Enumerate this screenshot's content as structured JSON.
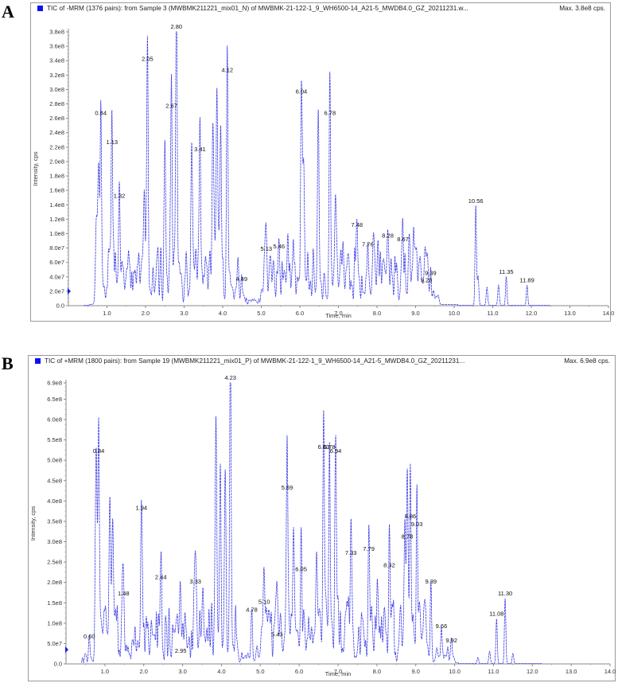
{
  "panels": [
    {
      "letter": "A",
      "header_title": "TIC of -MRM (1376 pairs): from Sample 3 (MWBMK211221_mix01_N) of MWBMK-21-122-1_9_WH6500-14_A21-5_MWDB4.0_GZ_20211231.w...",
      "max_label": "Max. 3.8e8 cps.",
      "xlabel": "Time, min",
      "ylabel": "Intensity, cps"
    },
    {
      "letter": "B",
      "header_title": "TIC of +MRM (1800 pairs): from Sample 19 (MWBMK211221_mix01_P) of MWBMK-21-122-1_9_WH6500-14_A21-5_MWDB4.0_GZ_20211231...",
      "max_label": "Max. 6.9e8 cps.",
      "xlabel": "Time, min",
      "ylabel": "Intensity, cps"
    }
  ],
  "colors": {
    "trace": "#3b3be6",
    "marker": "#1a1aee",
    "frame": "#9a9a9a",
    "axis": "#8a8a8a"
  },
  "chart_data": [
    {
      "type": "line",
      "title": "TIC of -MRM (1376 pairs): from Sample 3 (MWBMK211221_mix01_N)",
      "xlabel": "Time, min",
      "ylabel": "Intensity, cps",
      "xlim": [
        0.0,
        14.0
      ],
      "ylim": [
        0.0,
        380000000.0
      ],
      "x_ticks": [
        "1.0",
        "2.0",
        "3.0",
        "4.0",
        "5.0",
        "6.0",
        "7.0",
        "8.0",
        "9.0",
        "10.0",
        "11.0",
        "12.0",
        "13.0",
        "14.0"
      ],
      "y_ticks": [
        "0.0",
        "2.0e7",
        "4.0e7",
        "6.0e7",
        "8.0e7",
        "1.0e8",
        "1.2e8",
        "1.4e8",
        "1.6e8",
        "1.8e8",
        "2.0e8",
        "2.2e8",
        "2.4e8",
        "2.6e8",
        "2.8e8",
        "3.0e8",
        "3.2e8",
        "3.4e8",
        "3.6e8",
        "3.8e8"
      ],
      "max": "3.8e8",
      "grid": false,
      "labeled_peaks": [
        {
          "rt": 0.84,
          "label": "0.84",
          "intensity": 260000000.0
        },
        {
          "rt": 1.13,
          "label": "1.13",
          "intensity": 220000000.0
        },
        {
          "rt": 1.32,
          "label": "1.32",
          "intensity": 145000000.0
        },
        {
          "rt": 2.05,
          "label": "2.05",
          "intensity": 335000000.0
        },
        {
          "rt": 2.67,
          "label": "2.67",
          "intensity": 270000000.0
        },
        {
          "rt": 2.8,
          "label": "2.80",
          "intensity": 380000000.0
        },
        {
          "rt": 3.41,
          "label": "3.41",
          "intensity": 210000000.0
        },
        {
          "rt": 4.12,
          "label": "4.12",
          "intensity": 320000000.0
        },
        {
          "rt": 4.49,
          "label": "4.49",
          "intensity": 30000000.0
        },
        {
          "rt": 5.13,
          "label": "5.13",
          "intensity": 72000000.0
        },
        {
          "rt": 5.46,
          "label": "5.46",
          "intensity": 75000000.0
        },
        {
          "rt": 6.04,
          "label": "6.04",
          "intensity": 290000000.0
        },
        {
          "rt": 6.78,
          "label": "6.78",
          "intensity": 260000000.0
        },
        {
          "rt": 7.48,
          "label": "7.48",
          "intensity": 105000000.0
        },
        {
          "rt": 7.76,
          "label": "7.76",
          "intensity": 78000000.0
        },
        {
          "rt": 8.28,
          "label": "8.28",
          "intensity": 90000000.0
        },
        {
          "rt": 8.67,
          "label": "8.67",
          "intensity": 85000000.0
        },
        {
          "rt": 9.28,
          "label": "9.28",
          "intensity": 28000000.0
        },
        {
          "rt": 9.39,
          "label": "9.39",
          "intensity": 38000000.0
        },
        {
          "rt": 10.56,
          "label": "10.56",
          "intensity": 138000000.0
        },
        {
          "rt": 11.35,
          "label": "11.35",
          "intensity": 40000000.0
        },
        {
          "rt": 11.89,
          "label": "11.89",
          "intensity": 28000000.0
        }
      ]
    },
    {
      "type": "line",
      "title": "TIC of +MRM (1800 pairs): from Sample 19 (MWBMK211221_mix01_P)",
      "xlabel": "Time, min",
      "ylabel": "Intensity, cps",
      "xlim": [
        0.0,
        14.0
      ],
      "ylim": [
        0.0,
        690000000.0
      ],
      "x_ticks": [
        "1.0",
        "2.0",
        "3.0",
        "4.0",
        "5.0",
        "6.0",
        "7.0",
        "8.0",
        "9.0",
        "10.0",
        "11.0",
        "12.0",
        "13.0",
        "14.0"
      ],
      "y_ticks": [
        "0.0",
        "5.0e7",
        "1.0e8",
        "1.5e8",
        "2.0e8",
        "2.5e8",
        "3.0e8",
        "3.5e8",
        "4.0e8",
        "4.5e8",
        "5.0e8",
        "5.5e8",
        "6.0e8",
        "6.5e8",
        "6.9e8"
      ],
      "max": "6.9e8",
      "grid": false,
      "labeled_peaks": [
        {
          "rt": 0.6,
          "label": "0.60",
          "intensity": 55000000.0
        },
        {
          "rt": 0.84,
          "label": "0.84",
          "intensity": 510000000.0
        },
        {
          "rt": 1.48,
          "label": "1.48",
          "intensity": 160000000.0
        },
        {
          "rt": 1.94,
          "label": "1.94",
          "intensity": 370000000.0
        },
        {
          "rt": 2.44,
          "label": "2.44",
          "intensity": 200000000.0
        },
        {
          "rt": 2.95,
          "label": "2.95",
          "intensity": 20000000.0
        },
        {
          "rt": 3.33,
          "label": "3.33",
          "intensity": 190000000.0
        },
        {
          "rt": 4.23,
          "label": "4.23",
          "intensity": 690000000.0
        },
        {
          "rt": 4.78,
          "label": "4.78",
          "intensity": 120000000.0
        },
        {
          "rt": 5.1,
          "label": "5.10",
          "intensity": 140000000.0
        },
        {
          "rt": 5.43,
          "label": "5.43",
          "intensity": 60000000.0
        },
        {
          "rt": 5.69,
          "label": "5.69",
          "intensity": 420000000.0
        },
        {
          "rt": 6.05,
          "label": "6.05",
          "intensity": 220000000.0
        },
        {
          "rt": 6.63,
          "label": "6.63",
          "intensity": 520000000.0
        },
        {
          "rt": 6.78,
          "label": "6.78",
          "intensity": 520000000.0
        },
        {
          "rt": 6.94,
          "label": "6.94",
          "intensity": 510000000.0
        },
        {
          "rt": 7.33,
          "label": "7.33",
          "intensity": 260000000.0
        },
        {
          "rt": 7.79,
          "label": "7.79",
          "intensity": 270000000.0
        },
        {
          "rt": 8.32,
          "label": "8.32",
          "intensity": 230000000.0
        },
        {
          "rt": 8.78,
          "label": "8.78",
          "intensity": 300000000.0
        },
        {
          "rt": 8.86,
          "label": "8.86",
          "intensity": 350000000.0
        },
        {
          "rt": 9.03,
          "label": "9.03",
          "intensity": 330000000.0
        },
        {
          "rt": 9.39,
          "label": "9.39",
          "intensity": 190000000.0
        },
        {
          "rt": 9.66,
          "label": "9.66",
          "intensity": 80000000.0
        },
        {
          "rt": 9.92,
          "label": "9.92",
          "intensity": 45000000.0
        },
        {
          "rt": 11.08,
          "label": "11.08",
          "intensity": 110000000.0
        },
        {
          "rt": 11.3,
          "label": "11.30",
          "intensity": 160000000.0
        }
      ]
    }
  ]
}
